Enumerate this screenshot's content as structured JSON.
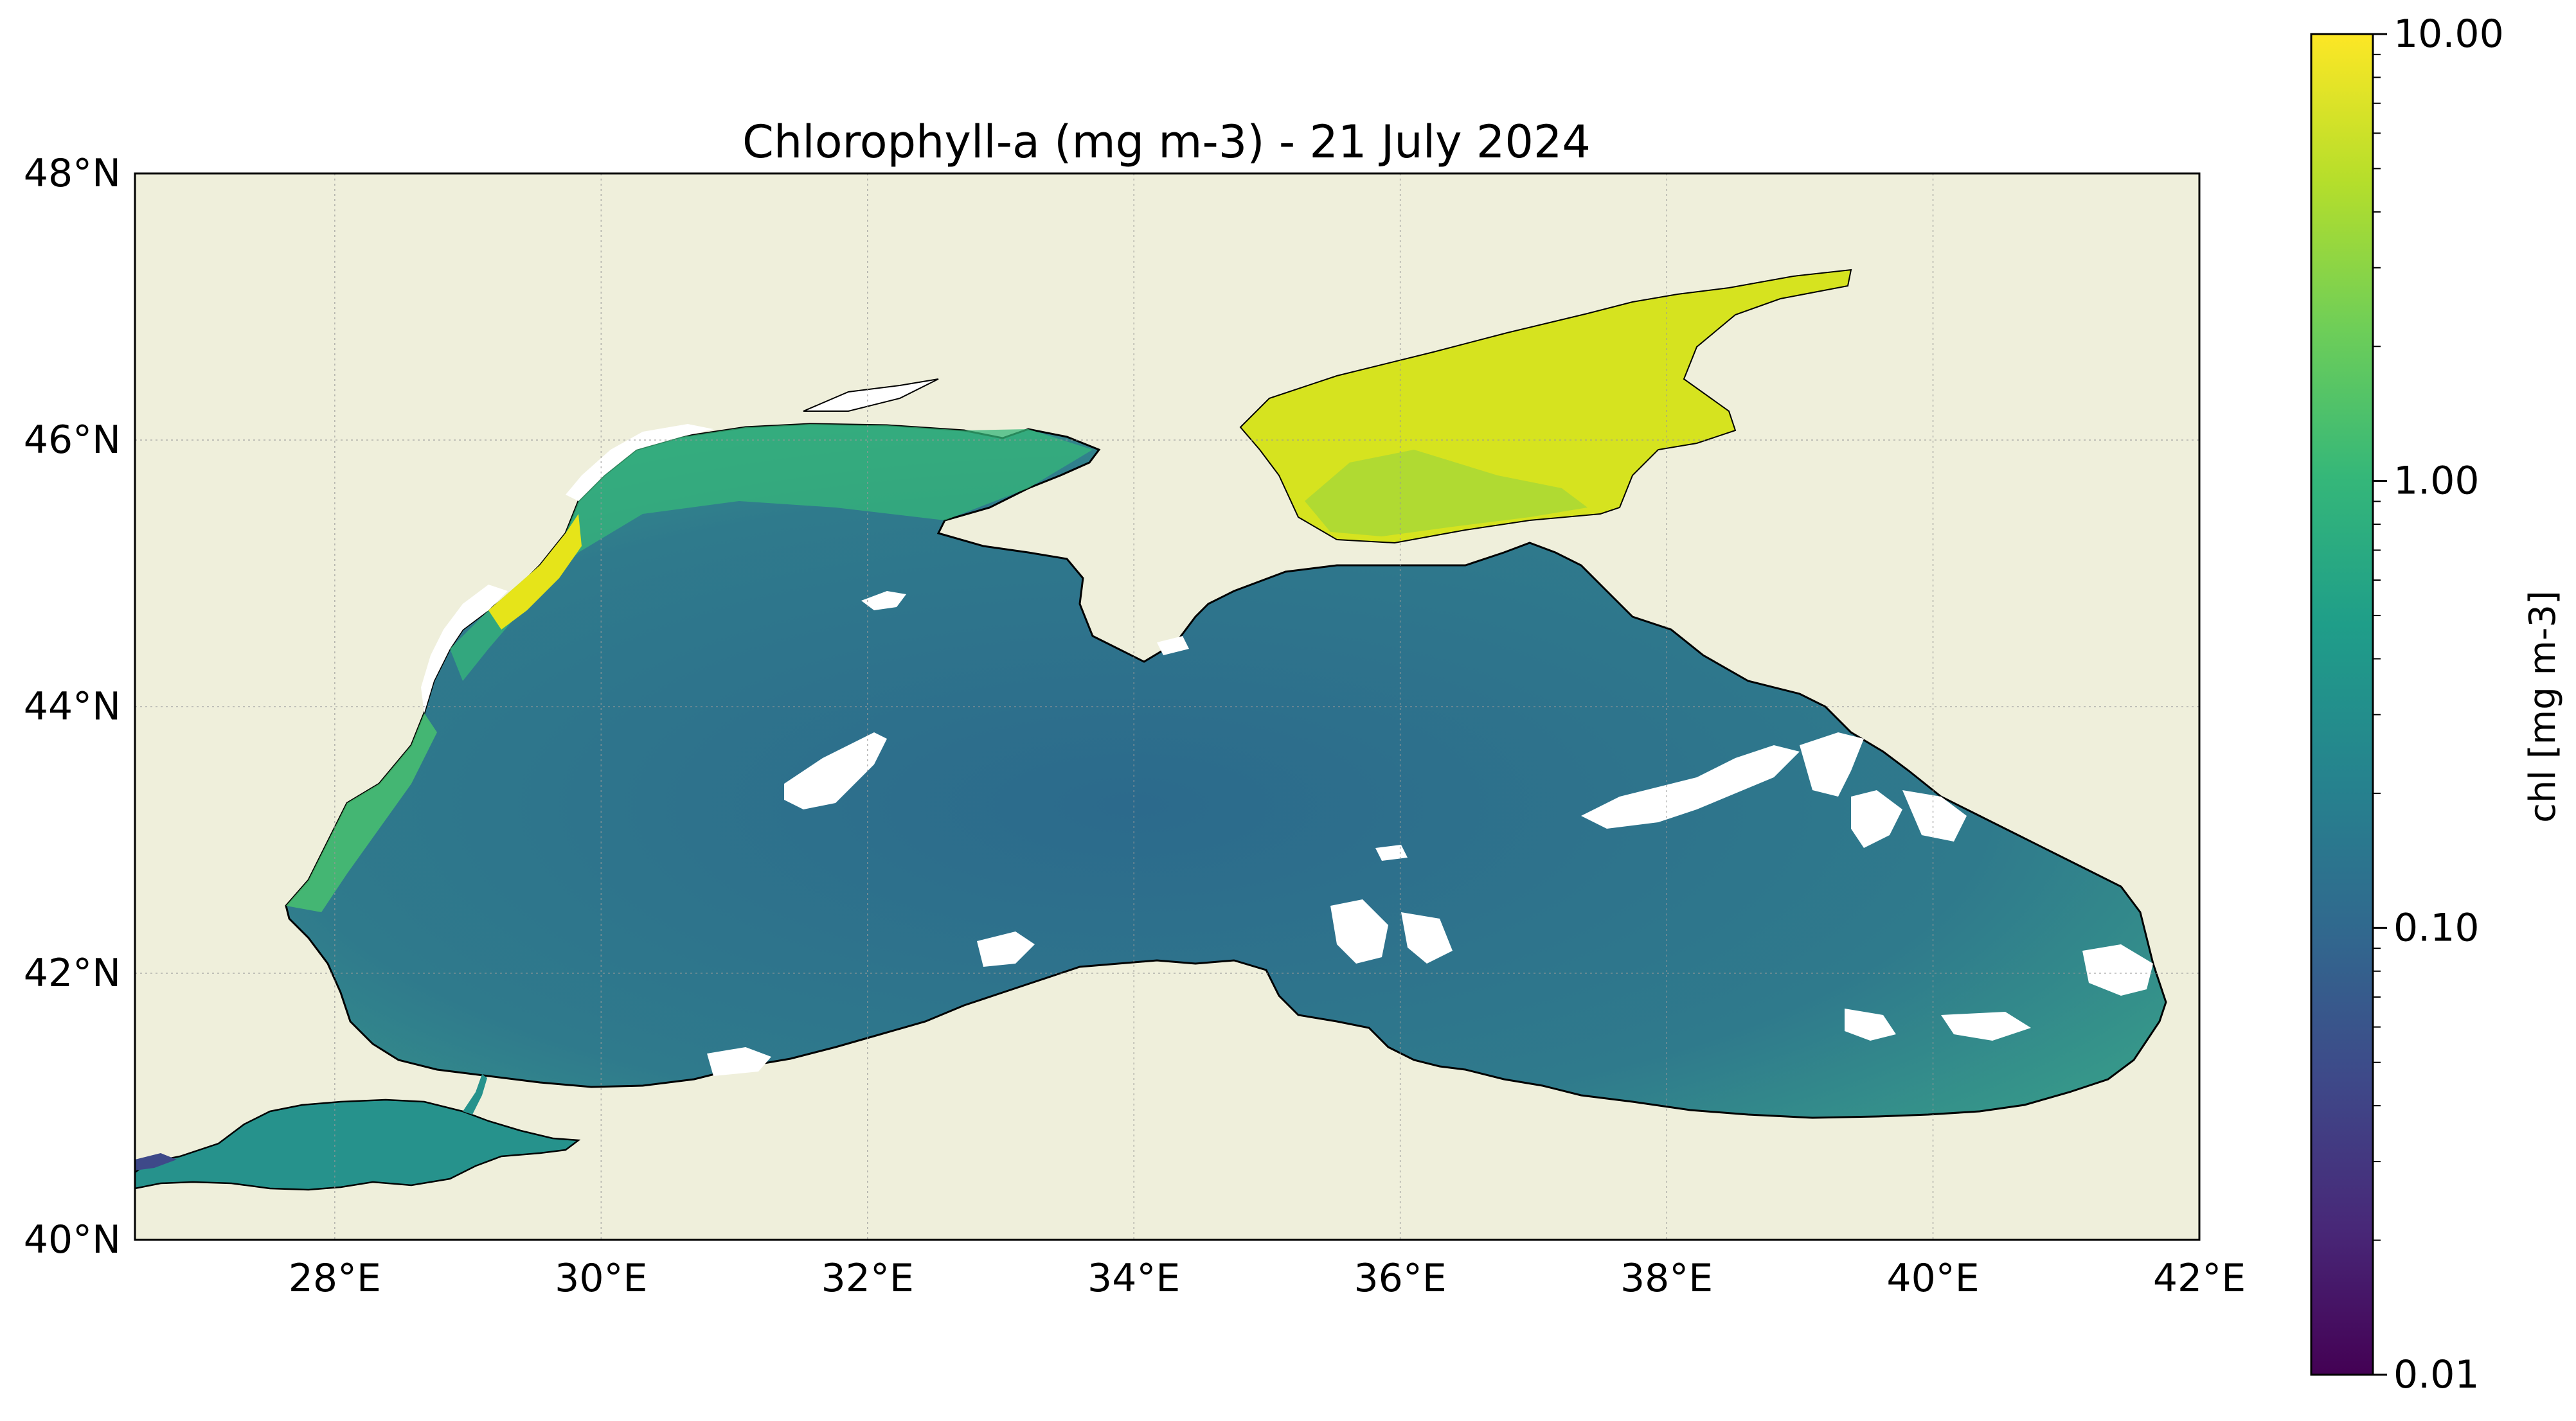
{
  "title": "Chlorophyll-a (mg m-3) - 21 July 2024",
  "map": {
    "lon_range": [
      26.5,
      42.0
    ],
    "lat_range": [
      40.0,
      48.0
    ],
    "lon_ticks": [
      {
        "value": 28,
        "label": "28°E"
      },
      {
        "value": 30,
        "label": "30°E"
      },
      {
        "value": 32,
        "label": "32°E"
      },
      {
        "value": 34,
        "label": "34°E"
      },
      {
        "value": 36,
        "label": "36°E"
      },
      {
        "value": 38,
        "label": "38°E"
      },
      {
        "value": 40,
        "label": "40°E"
      },
      {
        "value": 42,
        "label": "42°E"
      }
    ],
    "lat_ticks": [
      {
        "value": 40,
        "label": "40°N"
      },
      {
        "value": 42,
        "label": "42°N"
      },
      {
        "value": 44,
        "label": "44°N"
      },
      {
        "value": 46,
        "label": "46°N"
      },
      {
        "value": 48,
        "label": "48°N"
      }
    ],
    "gridlines": true,
    "land_color": "#efefdb",
    "no_data_color": "#ffffff",
    "coastline_color": "#000000"
  },
  "colorbar": {
    "label": "chl [mg m-3]",
    "scale": "log",
    "range": [
      0.01,
      10.0
    ],
    "colormap": "viridis",
    "ticks": [
      {
        "value": 10.0,
        "label": "10.00"
      },
      {
        "value": 1.0,
        "label": "1.00"
      },
      {
        "value": 0.1,
        "label": "0.10"
      },
      {
        "value": 0.01,
        "label": "0.01"
      }
    ],
    "colors": [
      "#440154",
      "#482878",
      "#3e4989",
      "#31688e",
      "#26828e",
      "#1f9e89",
      "#35b779",
      "#6ece58",
      "#b5de2b",
      "#fde725"
    ]
  }
}
